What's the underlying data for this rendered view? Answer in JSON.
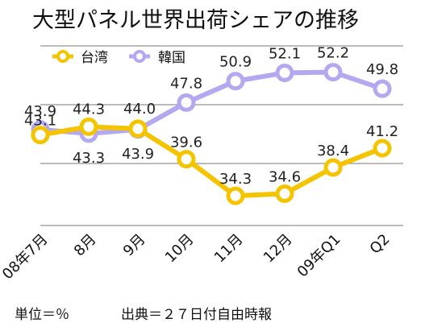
{
  "chart_data": {
    "type": "line",
    "title": "大型パネル世界出荷シェアの推移",
    "categories": [
      "08年7月",
      "8月",
      "9月",
      "10月",
      "11月",
      "12月",
      "09年Q1",
      "Q2"
    ],
    "series": [
      {
        "name": "台湾",
        "color": "#f5c400",
        "values": [
          43.1,
          44.3,
          44.0,
          39.6,
          34.3,
          34.6,
          38.4,
          41.2
        ]
      },
      {
        "name": "韓国",
        "color": "#b4a8f0",
        "values": [
          43.9,
          43.3,
          43.9,
          47.8,
          50.9,
          52.1,
          52.2,
          49.8
        ]
      }
    ],
    "legend": "top-left",
    "grid": true,
    "ylim": [
      30,
      56
    ],
    "xlabel": "",
    "ylabel": ""
  },
  "footer": {
    "unit": "単位＝％",
    "source": "出典＝２７日付自由時報"
  }
}
